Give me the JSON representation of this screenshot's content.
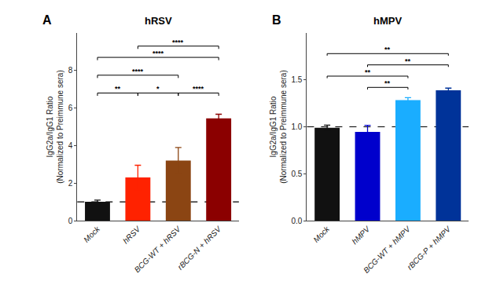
{
  "chart_data": [
    {
      "type": "bar",
      "title": "hRSV",
      "panel_label": "A",
      "categories": [
        "Mock",
        "hRSV",
        "BCG-WT + hRSV",
        "rBCG-N + hRSV"
      ],
      "values": [
        1.0,
        2.3,
        3.2,
        5.45
      ],
      "errors": [
        0.09,
        0.65,
        0.7,
        0.22
      ],
      "colors": [
        "#111111",
        "#ff2200",
        "#8B4513",
        "#8B0000"
      ],
      "ylim": [
        0,
        10.0
      ],
      "yticks": [
        0,
        2,
        4,
        6,
        8
      ],
      "ylabel": "IgG2a/IgG1 Ratio\n(Normalized to Preimmune sera)",
      "reference_y": 1.0,
      "grid": false,
      "significance_bars": [
        {
          "from": "Mock",
          "to": "hRSV",
          "y": 6.8,
          "height": 0.15,
          "label": "**"
        },
        {
          "from": "hRSV",
          "to": "BCG-WT + hRSV",
          "y": 6.8,
          "height": 0.15,
          "label": "*"
        },
        {
          "from": "BCG-WT + hRSV",
          "to": "rBCG-N + hRSV",
          "y": 6.8,
          "height": 0.15,
          "label": "****"
        },
        {
          "from": "Mock",
          "to": "BCG-WT + hRSV",
          "y": 7.75,
          "height": 0.15,
          "label": "****"
        },
        {
          "from": "Mock",
          "to": "rBCG-N + hRSV",
          "y": 8.7,
          "height": 0.15,
          "label": "****"
        },
        {
          "from": "hRSV",
          "to": "rBCG-N + hRSV",
          "y": 9.3,
          "height": 0.15,
          "label": "****"
        }
      ]
    },
    {
      "type": "bar",
      "title": "hMPV",
      "panel_label": "B",
      "categories": [
        "Mock",
        "hMPV",
        "BCG-WT + hMPV",
        "rBCG-P + hMPV"
      ],
      "values": [
        0.99,
        0.945,
        1.285,
        1.39
      ],
      "errors": [
        0.028,
        0.07,
        0.025,
        0.022
      ],
      "colors": [
        "#111111",
        "#0000cc",
        "#1aadff",
        "#003399"
      ],
      "ylim": [
        0,
        2.0
      ],
      "yticks": [
        {
          "value": 0.0,
          "label": "0.0"
        },
        0.5,
        {
          "value": 1.0,
          "label": "1.0"
        },
        1.5
      ],
      "ylabel": "IgG2a/IgG1 Ratio\n(Normalized to Preimmune sera)",
      "reference_y": 1.0,
      "grid": false,
      "significance_bars": [
        {
          "from": "hMPV",
          "to": "BCG-WT + hMPV",
          "y": 1.42,
          "height": 0.022,
          "label": "**"
        },
        {
          "from": "Mock",
          "to": "BCG-WT + hMPV",
          "y": 1.54,
          "height": 0.022,
          "label": "**"
        },
        {
          "from": "hMPV",
          "to": "rBCG-P + hMPV",
          "y": 1.66,
          "height": 0.022,
          "label": "**"
        },
        {
          "from": "Mock",
          "to": "rBCG-P + hMPV",
          "y": 1.78,
          "height": 0.022,
          "label": "**"
        }
      ]
    }
  ]
}
